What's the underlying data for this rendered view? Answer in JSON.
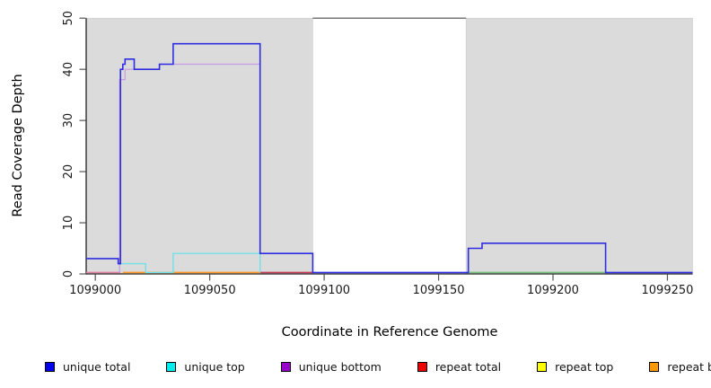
{
  "chart_data": {
    "type": "line",
    "subtype": "step-coverage",
    "title": "",
    "ylabel": "Read Coverage Depth",
    "xlabel": "Coordinate in Reference Genome",
    "xlim": [
      1098996,
      1099261
    ],
    "ylim": [
      0,
      50
    ],
    "x_ticks": [
      1099000,
      1099050,
      1099100,
      1099150,
      1099200,
      1099250
    ],
    "y_ticks": [
      0,
      10,
      20,
      30,
      40,
      50
    ],
    "grid": false,
    "legend_position": "bottom",
    "background_color": "#ffffff",
    "shaded_region_color": "#dbdbdb",
    "shaded_regions": [
      {
        "from": 1098996,
        "to": 1099095
      },
      {
        "from": 1099162,
        "to": 1099261
      }
    ],
    "gap_top_border": {
      "from": 1099095,
      "to": 1099162,
      "color": "#4a4a4a"
    },
    "zero_line_segments": [
      {
        "from": 1098996,
        "to": 1099011,
        "color": "#de7b9f"
      },
      {
        "from": 1099163,
        "to": 1099223,
        "color": "#74be78"
      }
    ],
    "series": [
      {
        "name": "repeat bottom",
        "line_color": "#ff9522",
        "line_width": 1.6,
        "steps": [
          [
            1099012,
            0
          ],
          [
            1099072,
            0
          ]
        ]
      },
      {
        "name": "repeat total",
        "line_color": "#c43a55",
        "line_width": 1.6,
        "steps": [
          [
            1099072,
            0
          ],
          [
            1099095,
            0
          ]
        ]
      },
      {
        "name": "repeat top",
        "line_color": "#ffff00",
        "line_width": 1.2,
        "steps": []
      },
      {
        "name": "unique bottom",
        "line_color": "#c79bde",
        "line_width": 1.2,
        "steps": [
          [
            1099010.6,
            0
          ],
          [
            1099010.6,
            38
          ],
          [
            1099013,
            40
          ],
          [
            1099028,
            41
          ],
          [
            1099072,
            0
          ]
        ]
      },
      {
        "name": "unique top",
        "line_color": "#70e2e8",
        "line_width": 1.4,
        "steps": [
          [
            1099010,
            2
          ],
          [
            1099022,
            0
          ],
          [
            1099034,
            4
          ],
          [
            1099072,
            0
          ]
        ]
      },
      {
        "name": "unique total",
        "line_color": "#2e2ee0",
        "line_width": 1.6,
        "steps": [
          [
            1098996,
            3
          ],
          [
            1099010,
            2
          ],
          [
            1099011,
            40
          ],
          [
            1099012,
            41
          ],
          [
            1099013,
            42
          ],
          [
            1099017,
            40
          ],
          [
            1099028,
            41
          ],
          [
            1099034,
            45
          ],
          [
            1099072,
            4
          ],
          [
            1099095,
            0
          ],
          [
            1099163,
            5
          ],
          [
            1099169,
            6
          ],
          [
            1099223,
            0
          ],
          [
            1099261,
            0
          ]
        ]
      }
    ]
  },
  "legend": {
    "items": [
      {
        "label": "unique total",
        "color": "#0000ee"
      },
      {
        "label": "unique top",
        "color": "#00eeee"
      },
      {
        "label": "unique bottom",
        "color": "#9900cc"
      },
      {
        "label": "repeat total",
        "color": "#ee0000"
      },
      {
        "label": "repeat top",
        "color": "#ffff00"
      },
      {
        "label": "repeat bottom",
        "color": "#ff9900"
      }
    ]
  },
  "axis": {
    "line_color": "#222222",
    "tick_color": "#555555",
    "tick_label_color": "#1a1a1a"
  }
}
